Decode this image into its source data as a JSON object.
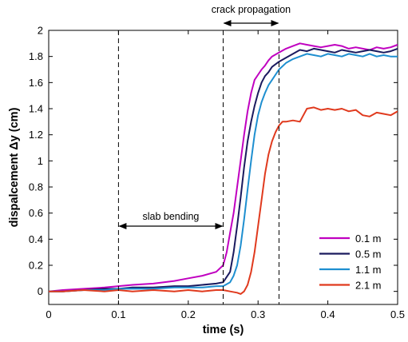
{
  "chart_data": {
    "type": "line",
    "title": "",
    "xlabel": "time (s)",
    "ylabel": "dispalcement Δy (cm)",
    "xlim": [
      0,
      0.5
    ],
    "ylim": [
      -0.1,
      2.0
    ],
    "xticks": [
      0,
      0.1,
      0.2,
      0.3,
      0.4,
      0.5
    ],
    "xtick_labels": [
      "0",
      "0.1",
      "0.2",
      "0.3",
      "0.4",
      "0.5"
    ],
    "yticks": [
      0,
      0.2,
      0.4,
      0.6,
      0.8,
      1,
      1.2,
      1.4,
      1.6,
      1.8,
      2
    ],
    "ytick_labels": [
      "0",
      "0.2",
      "0.4",
      "0.6",
      "0.8",
      "1",
      "1.2",
      "1.4",
      "1.6",
      "1.8",
      "2"
    ],
    "grid": false,
    "legend_position": "bottom-right",
    "vlines": [
      0.1,
      0.25,
      0.33
    ],
    "annotations": [
      {
        "text": "slab bending",
        "x_from": 0.1,
        "x_to": 0.25,
        "y": 0.5
      },
      {
        "text": "crack propagation",
        "x_from": 0.25,
        "x_to": 0.33,
        "y": 2.04
      }
    ],
    "series": [
      {
        "name": "0.1 m",
        "color": "#c000c0",
        "x": [
          0,
          0.02,
          0.05,
          0.08,
          0.1,
          0.12,
          0.15,
          0.18,
          0.2,
          0.22,
          0.24,
          0.25,
          0.255,
          0.26,
          0.265,
          0.27,
          0.275,
          0.28,
          0.285,
          0.29,
          0.295,
          0.3,
          0.305,
          0.31,
          0.315,
          0.32,
          0.33,
          0.34,
          0.35,
          0.36,
          0.37,
          0.38,
          0.39,
          0.4,
          0.41,
          0.42,
          0.43,
          0.44,
          0.45,
          0.46,
          0.47,
          0.48,
          0.49,
          0.5
        ],
        "y": [
          0,
          0.01,
          0.02,
          0.03,
          0.04,
          0.05,
          0.06,
          0.08,
          0.1,
          0.12,
          0.15,
          0.2,
          0.3,
          0.45,
          0.6,
          0.8,
          1.0,
          1.2,
          1.38,
          1.52,
          1.62,
          1.66,
          1.7,
          1.73,
          1.77,
          1.8,
          1.83,
          1.86,
          1.88,
          1.9,
          1.89,
          1.88,
          1.87,
          1.88,
          1.89,
          1.88,
          1.86,
          1.87,
          1.86,
          1.85,
          1.87,
          1.86,
          1.87,
          1.89
        ]
      },
      {
        "name": "0.5 m",
        "color": "#1a1a5e",
        "x": [
          0,
          0.02,
          0.05,
          0.08,
          0.1,
          0.12,
          0.15,
          0.18,
          0.2,
          0.22,
          0.24,
          0.25,
          0.26,
          0.265,
          0.27,
          0.275,
          0.28,
          0.285,
          0.29,
          0.295,
          0.3,
          0.305,
          0.31,
          0.315,
          0.32,
          0.33,
          0.34,
          0.35,
          0.36,
          0.37,
          0.38,
          0.39,
          0.4,
          0.41,
          0.42,
          0.43,
          0.44,
          0.45,
          0.46,
          0.47,
          0.48,
          0.49,
          0.5
        ],
        "y": [
          0,
          0.0,
          0.01,
          0.02,
          0.02,
          0.03,
          0.03,
          0.04,
          0.04,
          0.05,
          0.06,
          0.07,
          0.15,
          0.3,
          0.5,
          0.72,
          0.95,
          1.15,
          1.3,
          1.42,
          1.52,
          1.6,
          1.65,
          1.68,
          1.72,
          1.76,
          1.79,
          1.82,
          1.85,
          1.84,
          1.86,
          1.85,
          1.84,
          1.83,
          1.85,
          1.84,
          1.83,
          1.84,
          1.85,
          1.84,
          1.83,
          1.84,
          1.86
        ]
      },
      {
        "name": "1.1 m",
        "color": "#1e8fd0",
        "x": [
          0,
          0.02,
          0.05,
          0.08,
          0.1,
          0.12,
          0.15,
          0.18,
          0.2,
          0.22,
          0.24,
          0.25,
          0.26,
          0.265,
          0.27,
          0.275,
          0.28,
          0.285,
          0.29,
          0.295,
          0.3,
          0.305,
          0.31,
          0.315,
          0.32,
          0.33,
          0.34,
          0.35,
          0.36,
          0.37,
          0.38,
          0.39,
          0.4,
          0.41,
          0.42,
          0.43,
          0.44,
          0.45,
          0.46,
          0.47,
          0.48,
          0.49,
          0.5
        ],
        "y": [
          0,
          0.0,
          0.01,
          0.01,
          0.02,
          0.02,
          0.02,
          0.03,
          0.03,
          0.03,
          0.04,
          0.04,
          0.07,
          0.12,
          0.2,
          0.35,
          0.55,
          0.78,
          1.0,
          1.2,
          1.35,
          1.45,
          1.52,
          1.58,
          1.62,
          1.7,
          1.75,
          1.78,
          1.8,
          1.82,
          1.81,
          1.8,
          1.82,
          1.81,
          1.8,
          1.82,
          1.81,
          1.8,
          1.82,
          1.8,
          1.81,
          1.8,
          1.8
        ]
      },
      {
        "name": "2.1 m",
        "color": "#e03a1e",
        "x": [
          0,
          0.02,
          0.05,
          0.08,
          0.1,
          0.12,
          0.15,
          0.18,
          0.2,
          0.22,
          0.24,
          0.25,
          0.26,
          0.27,
          0.275,
          0.28,
          0.285,
          0.29,
          0.295,
          0.3,
          0.305,
          0.31,
          0.315,
          0.32,
          0.325,
          0.33,
          0.335,
          0.34,
          0.35,
          0.36,
          0.37,
          0.38,
          0.39,
          0.4,
          0.41,
          0.42,
          0.43,
          0.44,
          0.45,
          0.46,
          0.47,
          0.48,
          0.49,
          0.5
        ],
        "y": [
          0,
          0.0,
          0.01,
          0.0,
          0.01,
          0.0,
          0.01,
          0.0,
          0.01,
          0.0,
          0.01,
          0.01,
          0.0,
          -0.01,
          -0.02,
          0.0,
          0.05,
          0.15,
          0.3,
          0.5,
          0.7,
          0.9,
          1.05,
          1.15,
          1.22,
          1.27,
          1.3,
          1.3,
          1.31,
          1.3,
          1.4,
          1.41,
          1.39,
          1.4,
          1.39,
          1.4,
          1.38,
          1.39,
          1.35,
          1.34,
          1.37,
          1.36,
          1.35,
          1.38
        ]
      }
    ]
  }
}
